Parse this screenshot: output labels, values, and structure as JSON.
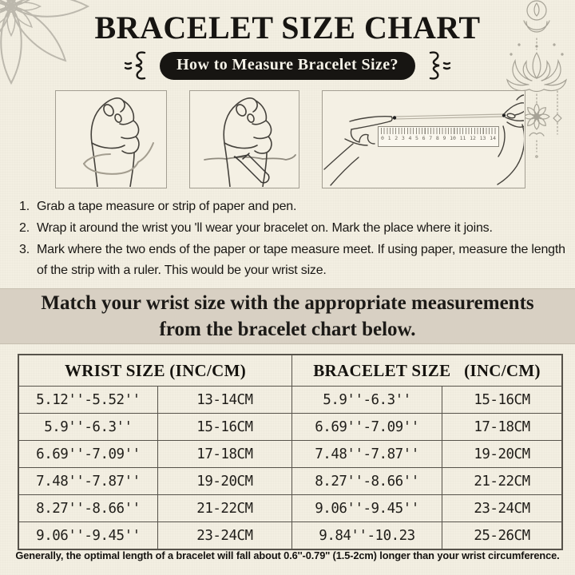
{
  "header": {
    "title": "BRACELET SIZE CHART",
    "badge": "How to Measure Bracelet Size?"
  },
  "steps": {
    "items": [
      {
        "num": "1.",
        "text": "Grab a tape measure or strip of paper and pen."
      },
      {
        "num": "2.",
        "text": "Wrap it around the wrist you 'll wear your bracelet on. Mark the place where it joins."
      },
      {
        "num": "3.",
        "text": "Mark where the two ends of the paper or tape measure meet. If using paper, measure the length of the strip with a ruler. This would be your wrist size."
      }
    ]
  },
  "banner": {
    "line1": "Match your wrist size with the appropriate measurements",
    "line2": "from the bracelet chart below."
  },
  "size_table": {
    "headers": [
      "WRIST SIZE (INC/CM)",
      "BRACELET SIZE   (INC/CM)"
    ],
    "rows": [
      [
        "5.12''-5.52''",
        "13-14CM",
        "5.9''-6.3''",
        "15-16CM"
      ],
      [
        "5.9''-6.3''",
        "15-16CM",
        "6.69''-7.09''",
        "17-18CM"
      ],
      [
        "6.69''-7.09''",
        "17-18CM",
        "7.48''-7.87''",
        "19-20CM"
      ],
      [
        "7.48''-7.87''",
        "19-20CM",
        "8.27''-8.66''",
        "21-22CM"
      ],
      [
        "8.27''-8.66''",
        "21-22CM",
        "9.06''-9.45''",
        "23-24CM"
      ],
      [
        "9.06''-9.45''",
        "23-24CM",
        "9.84''-10.23",
        "25-26CM"
      ]
    ]
  },
  "illustrations": {
    "ruler_numbers": [
      "0",
      "1",
      "2",
      "3",
      "4",
      "5",
      "6",
      "7",
      "8",
      "9",
      "10",
      "11",
      "12",
      "13",
      "14"
    ]
  },
  "footer": {
    "note": "Generally, the optimal length of a bracelet will fall about 0.6''-0.79'' (1.5-2cm) longer than your wrist circumference."
  },
  "colors": {
    "background": "#f3efe2",
    "banner_bg": "#d8d0c3",
    "badge_bg": "#171512",
    "table_border": "#57534b",
    "line_art": "#45423c",
    "decor_gray": "#aaa69b"
  }
}
